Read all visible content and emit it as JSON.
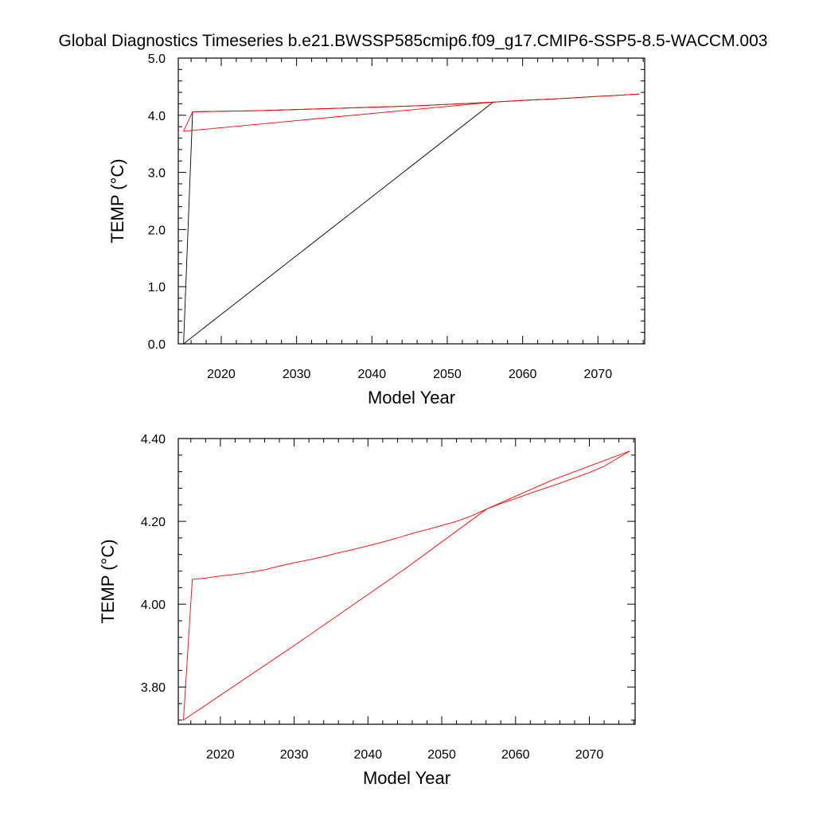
{
  "title": "Global Diagnostics Timeseries b.e21.BWSSP585cmip6.f09_g17.CMIP6-SSP5-8.5-WACCM.003",
  "colors": {
    "series_black": "#000000",
    "series_red": "#ff0000",
    "axes": "#000000"
  },
  "chart_data": [
    {
      "type": "line",
      "xlabel": "Model Year",
      "ylabel": "TEMP (°C)",
      "xlim": [
        2014.3,
        2076.2
      ],
      "ylim": [
        0.0,
        5.0
      ],
      "xticks": [
        2020,
        2030,
        2040,
        2050,
        2060,
        2070
      ],
      "xtick_labels": [
        "2020",
        "2030",
        "2040",
        "2050",
        "2060",
        "2070"
      ],
      "yticks": [
        0.0,
        1.0,
        2.0,
        3.0,
        4.0,
        5.0
      ],
      "ytick_labels": [
        "0.0",
        "1.0",
        "2.0",
        "3.0",
        "4.0",
        "5.0"
      ],
      "grid": false,
      "series": [
        {
          "color": "#000000",
          "x": [
            2015,
            2016.2,
            2020,
            2025,
            2030,
            2035,
            2040,
            2045,
            2050,
            2056.1,
            2060,
            2065,
            2070,
            2075.5
          ],
          "y": [
            0.0,
            4.06,
            4.07,
            4.08,
            4.1,
            4.12,
            4.14,
            4.16,
            4.19,
            4.23,
            4.26,
            4.29,
            4.33,
            4.37
          ]
        },
        {
          "color": "#ff0000",
          "x": [
            2015,
            2016.2,
            2020,
            2025,
            2030,
            2035,
            2040,
            2045,
            2050,
            2056.1,
            2060,
            2065,
            2070,
            2075.5
          ],
          "y": [
            3.72,
            4.06,
            4.07,
            4.08,
            4.1,
            4.12,
            4.14,
            4.16,
            4.19,
            4.23,
            4.26,
            4.29,
            4.33,
            4.37
          ]
        },
        {
          "color": "#000000",
          "x": [
            2015,
            2056.1
          ],
          "y": [
            0.0,
            4.23
          ]
        },
        {
          "color": "#ff0000",
          "x": [
            2015,
            2056.1
          ],
          "y": [
            3.72,
            4.23
          ]
        }
      ]
    },
    {
      "type": "line",
      "xlabel": "Model Year",
      "ylabel": "TEMP (°C)",
      "xlim": [
        2014.3,
        2076.2
      ],
      "ylim": [
        3.71,
        4.4
      ],
      "xticks": [
        2020,
        2030,
        2040,
        2050,
        2060,
        2070
      ],
      "xtick_labels": [
        "2020",
        "2030",
        "2040",
        "2050",
        "2060",
        "2070"
      ],
      "yticks": [
        3.8,
        4.0,
        4.2,
        4.4
      ],
      "ytick_labels": [
        "3.80",
        "4.00",
        "4.20",
        "4.40"
      ],
      "grid": false,
      "series": [
        {
          "color": "#ff0000",
          "x": [
            2015,
            2016.2,
            2018,
            2020,
            2022,
            2024,
            2026,
            2028,
            2030,
            2032,
            2034,
            2036,
            2038,
            2040,
            2042,
            2044,
            2046,
            2048,
            2050,
            2052,
            2054,
            2056.1,
            2058,
            2060,
            2062,
            2064,
            2066,
            2068,
            2070,
            2072,
            2075.5
          ],
          "y": [
            3.72,
            4.06,
            4.063,
            4.068,
            4.072,
            4.077,
            4.083,
            4.092,
            4.1,
            4.107,
            4.115,
            4.124,
            4.132,
            4.141,
            4.15,
            4.16,
            4.171,
            4.18,
            4.19,
            4.2,
            4.213,
            4.23,
            4.243,
            4.255,
            4.268,
            4.28,
            4.292,
            4.305,
            4.318,
            4.333,
            4.37
          ]
        },
        {
          "color": "#ff0000",
          "x": [
            2015,
            2030,
            2045,
            2056.1,
            2065,
            2075.5
          ],
          "y": [
            3.72,
            3.9,
            4.085,
            4.23,
            4.3,
            4.37
          ]
        }
      ]
    }
  ]
}
